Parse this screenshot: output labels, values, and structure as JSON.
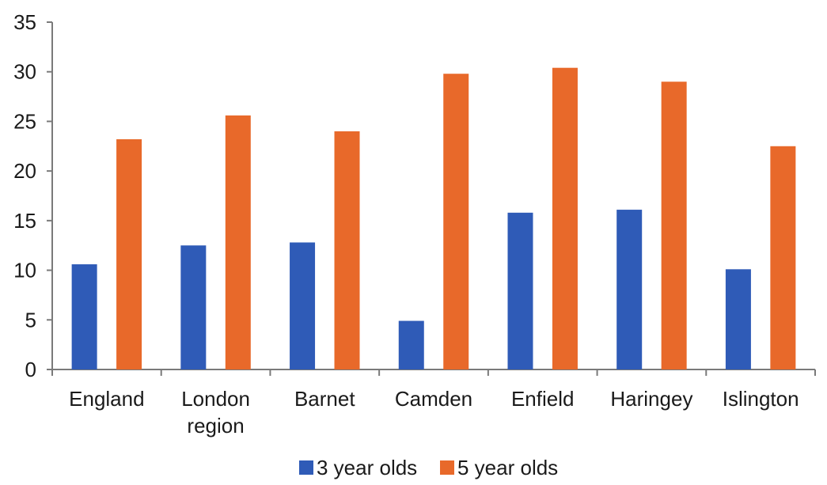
{
  "chart_data": {
    "type": "bar",
    "title": "",
    "xlabel": "",
    "ylabel": "",
    "ylim": [
      0,
      35
    ],
    "yticks": [
      0,
      5,
      10,
      15,
      20,
      25,
      30,
      35
    ],
    "grid": false,
    "legend_position": "bottom",
    "categories": [
      [
        "England"
      ],
      [
        "London",
        "region"
      ],
      [
        "Barnet"
      ],
      [
        "Camden"
      ],
      [
        "Enfield"
      ],
      [
        "Haringey"
      ],
      [
        "Islington"
      ]
    ],
    "series": [
      {
        "name": "3 year olds",
        "color": "#2f5bb7",
        "values": [
          10.6,
          12.5,
          12.8,
          4.9,
          15.8,
          16.1,
          10.1
        ]
      },
      {
        "name": "5 year olds",
        "color": "#e8692a",
        "values": [
          23.2,
          25.6,
          24.0,
          29.8,
          30.4,
          29.0,
          22.5
        ]
      }
    ]
  }
}
